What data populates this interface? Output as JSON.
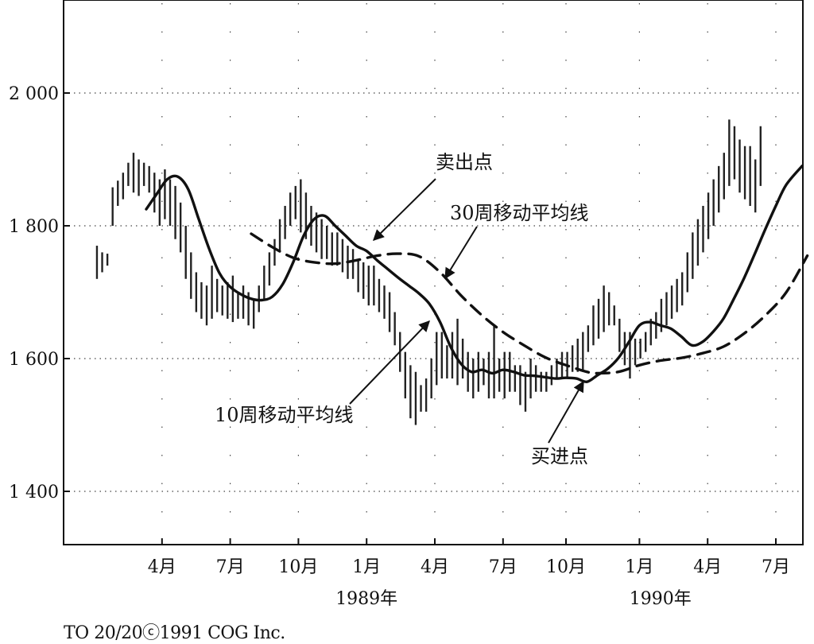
{
  "chart_data": {
    "type": "line",
    "title": "",
    "xlabel": "",
    "ylabel": "",
    "ylim": [
      1320,
      2140
    ],
    "grid": true,
    "legend": "none",
    "y_ticks": [
      {
        "value": 2000,
        "label": "2 000"
      },
      {
        "value": 1800,
        "label": "1 800"
      },
      {
        "value": 1600,
        "label": "1 600"
      },
      {
        "value": 1400,
        "label": "1 400"
      }
    ],
    "x_ticks": [
      {
        "week": 13,
        "label": "4月"
      },
      {
        "week": 26,
        "label": "7月"
      },
      {
        "week": 39,
        "label": "10月"
      },
      {
        "week": 52,
        "label": "1月"
      },
      {
        "week": 65,
        "label": "4月"
      },
      {
        "week": 78,
        "label": "7月"
      },
      {
        "week": 90,
        "label": "10月"
      },
      {
        "week": 104,
        "label": "1月"
      },
      {
        "week": 117,
        "label": "4月"
      },
      {
        "week": 130,
        "label": "7月"
      },
      {
        "week": 141,
        "label": "10月"
      }
    ],
    "year_labels": [
      {
        "week": 52,
        "label": "1989年"
      },
      {
        "week": 108,
        "label": "1990年"
      }
    ],
    "series": [
      {
        "name": "10周移动平均线",
        "style": "solid",
        "points": [
          [
            10,
            1825
          ],
          [
            12,
            1848
          ],
          [
            14,
            1870
          ],
          [
            16,
            1874
          ],
          [
            18,
            1855
          ],
          [
            20,
            1810
          ],
          [
            22,
            1765
          ],
          [
            24,
            1728
          ],
          [
            26,
            1708
          ],
          [
            28,
            1697
          ],
          [
            30,
            1690
          ],
          [
            32,
            1688
          ],
          [
            34,
            1693
          ],
          [
            36,
            1712
          ],
          [
            38,
            1745
          ],
          [
            40,
            1785
          ],
          [
            42,
            1810
          ],
          [
            44,
            1815
          ],
          [
            46,
            1800
          ],
          [
            48,
            1785
          ],
          [
            50,
            1770
          ],
          [
            52,
            1762
          ],
          [
            54,
            1748
          ],
          [
            56,
            1735
          ],
          [
            58,
            1722
          ],
          [
            60,
            1710
          ],
          [
            62,
            1698
          ],
          [
            64,
            1682
          ],
          [
            66,
            1655
          ],
          [
            68,
            1618
          ],
          [
            70,
            1592
          ],
          [
            72,
            1580
          ],
          [
            74,
            1583
          ],
          [
            76,
            1578
          ],
          [
            78,
            1583
          ],
          [
            80,
            1580
          ],
          [
            82,
            1575
          ],
          [
            84,
            1574
          ],
          [
            86,
            1572
          ],
          [
            88,
            1570
          ],
          [
            90,
            1571
          ],
          [
            92,
            1570
          ],
          [
            94,
            1565
          ],
          [
            96,
            1575
          ],
          [
            98,
            1585
          ],
          [
            100,
            1601
          ],
          [
            102,
            1625
          ],
          [
            104,
            1650
          ],
          [
            106,
            1655
          ],
          [
            108,
            1650
          ],
          [
            110,
            1645
          ],
          [
            112,
            1633
          ],
          [
            114,
            1620
          ],
          [
            116,
            1625
          ],
          [
            118,
            1640
          ],
          [
            120,
            1660
          ],
          [
            122,
            1690
          ],
          [
            124,
            1722
          ],
          [
            126,
            1758
          ],
          [
            128,
            1795
          ],
          [
            130,
            1830
          ],
          [
            132,
            1862
          ],
          [
            135,
            1890
          ]
        ]
      },
      {
        "name": "30周移动平均线",
        "style": "dashed",
        "points": [
          [
            30,
            1788
          ],
          [
            34,
            1768
          ],
          [
            38,
            1752
          ],
          [
            42,
            1745
          ],
          [
            46,
            1743
          ],
          [
            50,
            1748
          ],
          [
            54,
            1755
          ],
          [
            58,
            1758
          ],
          [
            62,
            1754
          ],
          [
            66,
            1730
          ],
          [
            70,
            1695
          ],
          [
            74,
            1665
          ],
          [
            78,
            1640
          ],
          [
            82,
            1620
          ],
          [
            86,
            1602
          ],
          [
            90,
            1590
          ],
          [
            94,
            1580
          ],
          [
            96,
            1578
          ],
          [
            100,
            1580
          ],
          [
            104,
            1590
          ],
          [
            108,
            1597
          ],
          [
            112,
            1601
          ],
          [
            116,
            1608
          ],
          [
            120,
            1618
          ],
          [
            124,
            1638
          ],
          [
            128,
            1665
          ],
          [
            132,
            1700
          ],
          [
            136,
            1755
          ]
        ]
      },
      {
        "name": "weekly-price-bars",
        "style": "bars",
        "bars": [
          [
            0,
            1720,
            1770
          ],
          [
            1,
            1730,
            1760
          ],
          [
            2,
            1740,
            1758
          ],
          [
            3,
            1800,
            1858
          ],
          [
            4,
            1830,
            1868
          ],
          [
            5,
            1840,
            1880
          ],
          [
            6,
            1860,
            1895
          ],
          [
            7,
            1850,
            1910
          ],
          [
            8,
            1845,
            1900
          ],
          [
            9,
            1860,
            1895
          ],
          [
            10,
            1850,
            1890
          ],
          [
            11,
            1820,
            1880
          ],
          [
            12,
            1800,
            1870
          ],
          [
            13,
            1810,
            1885
          ],
          [
            14,
            1800,
            1870
          ],
          [
            15,
            1780,
            1860
          ],
          [
            16,
            1760,
            1835
          ],
          [
            17,
            1720,
            1800
          ],
          [
            18,
            1690,
            1760
          ],
          [
            19,
            1670,
            1730
          ],
          [
            20,
            1660,
            1715
          ],
          [
            21,
            1650,
            1710
          ],
          [
            22,
            1660,
            1740
          ],
          [
            23,
            1670,
            1720
          ],
          [
            24,
            1665,
            1710
          ],
          [
            25,
            1660,
            1715
          ],
          [
            26,
            1655,
            1725
          ],
          [
            27,
            1660,
            1700
          ],
          [
            28,
            1660,
            1710
          ],
          [
            29,
            1650,
            1700
          ],
          [
            30,
            1645,
            1690
          ],
          [
            31,
            1670,
            1710
          ],
          [
            32,
            1690,
            1740
          ],
          [
            33,
            1710,
            1760
          ],
          [
            34,
            1740,
            1780
          ],
          [
            35,
            1760,
            1810
          ],
          [
            36,
            1780,
            1830
          ],
          [
            37,
            1800,
            1850
          ],
          [
            38,
            1810,
            1860
          ],
          [
            39,
            1790,
            1870
          ],
          [
            40,
            1780,
            1850
          ],
          [
            41,
            1770,
            1830
          ],
          [
            42,
            1760,
            1820
          ],
          [
            43,
            1750,
            1810
          ],
          [
            44,
            1750,
            1800
          ],
          [
            45,
            1740,
            1790
          ],
          [
            46,
            1740,
            1790
          ],
          [
            47,
            1730,
            1780
          ],
          [
            48,
            1720,
            1770
          ],
          [
            49,
            1720,
            1765
          ],
          [
            50,
            1700,
            1750
          ],
          [
            51,
            1690,
            1745
          ],
          [
            52,
            1680,
            1740
          ],
          [
            53,
            1680,
            1740
          ],
          [
            54,
            1670,
            1720
          ],
          [
            55,
            1660,
            1710
          ],
          [
            56,
            1640,
            1700
          ],
          [
            57,
            1620,
            1670
          ],
          [
            58,
            1580,
            1640
          ],
          [
            59,
            1540,
            1610
          ],
          [
            60,
            1510,
            1590
          ],
          [
            61,
            1500,
            1580
          ],
          [
            62,
            1520,
            1560
          ],
          [
            63,
            1520,
            1570
          ],
          [
            64,
            1540,
            1600
          ],
          [
            65,
            1560,
            1640
          ],
          [
            66,
            1570,
            1640
          ],
          [
            67,
            1570,
            1620
          ],
          [
            68,
            1570,
            1640
          ],
          [
            69,
            1560,
            1660
          ],
          [
            70,
            1570,
            1630
          ],
          [
            71,
            1550,
            1610
          ],
          [
            72,
            1540,
            1600
          ],
          [
            73,
            1550,
            1610
          ],
          [
            74,
            1560,
            1600
          ],
          [
            75,
            1540,
            1610
          ],
          [
            76,
            1540,
            1650
          ],
          [
            77,
            1550,
            1600
          ],
          [
            78,
            1540,
            1610
          ],
          [
            79,
            1550,
            1610
          ],
          [
            80,
            1550,
            1590
          ],
          [
            81,
            1530,
            1590
          ],
          [
            82,
            1520,
            1580
          ],
          [
            83,
            1540,
            1600
          ],
          [
            84,
            1550,
            1590
          ],
          [
            85,
            1550,
            1580
          ],
          [
            86,
            1550,
            1580
          ],
          [
            87,
            1560,
            1590
          ],
          [
            88,
            1570,
            1600
          ],
          [
            89,
            1570,
            1610
          ],
          [
            90,
            1570,
            1610
          ],
          [
            91,
            1580,
            1620
          ],
          [
            92,
            1580,
            1630
          ],
          [
            93,
            1580,
            1640
          ],
          [
            94,
            1610,
            1650
          ],
          [
            95,
            1620,
            1680
          ],
          [
            96,
            1630,
            1690
          ],
          [
            97,
            1640,
            1710
          ],
          [
            98,
            1650,
            1700
          ],
          [
            99,
            1650,
            1680
          ],
          [
            100,
            1610,
            1660
          ],
          [
            101,
            1590,
            1640
          ],
          [
            102,
            1570,
            1640
          ],
          [
            103,
            1590,
            1630
          ],
          [
            104,
            1600,
            1630
          ],
          [
            105,
            1610,
            1640
          ],
          [
            106,
            1620,
            1660
          ],
          [
            107,
            1630,
            1670
          ],
          [
            108,
            1640,
            1690
          ],
          [
            109,
            1650,
            1700
          ],
          [
            110,
            1660,
            1710
          ],
          [
            111,
            1670,
            1720
          ],
          [
            112,
            1680,
            1730
          ],
          [
            113,
            1700,
            1760
          ],
          [
            114,
            1720,
            1790
          ],
          [
            115,
            1740,
            1810
          ],
          [
            116,
            1760,
            1830
          ],
          [
            117,
            1780,
            1850
          ],
          [
            118,
            1800,
            1870
          ],
          [
            119,
            1820,
            1890
          ],
          [
            120,
            1840,
            1910
          ],
          [
            121,
            1860,
            1960
          ],
          [
            122,
            1870,
            1950
          ],
          [
            123,
            1850,
            1930
          ],
          [
            124,
            1840,
            1920
          ],
          [
            125,
            1830,
            1920
          ],
          [
            126,
            1820,
            1900
          ],
          [
            127,
            1860,
            1950
          ]
        ]
      }
    ],
    "annotations": [
      {
        "text": "卖出点"
      },
      {
        "text": "30周移动平均线"
      },
      {
        "text": "10周移动平均线"
      },
      {
        "text": "买进点"
      }
    ]
  },
  "footer": {
    "credit": "TO 20/20ⓒ1991 COG Inc."
  }
}
